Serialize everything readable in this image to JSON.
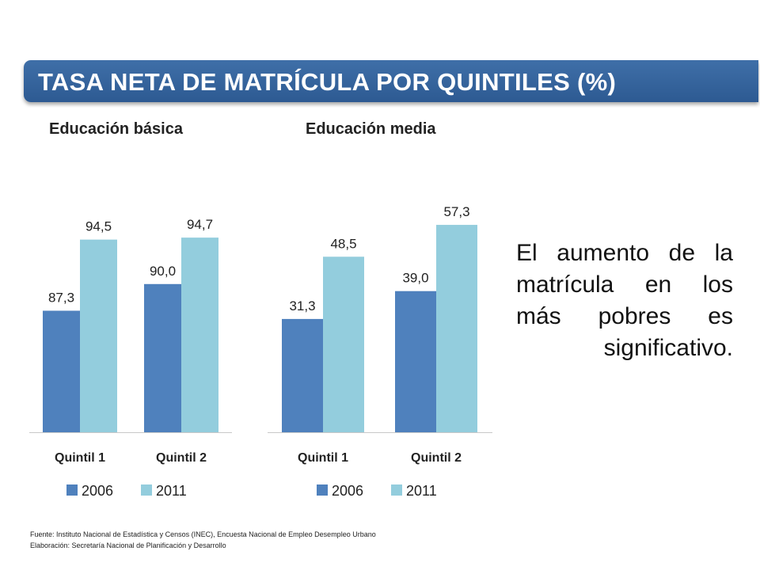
{
  "title": "TASA NETA DE MATRÍCULA POR QUINTILES (%)",
  "statement": "El aumento de la matrícula en los más pobres es significativo.",
  "footer": {
    "source": "Fuente: Instituto Nacional de Estadística y Censos  (INEC), Encuesta Nacional  de Empleo Desempleo Urbano",
    "elaboration": "Elaboración: Secretaría Nacional de Planificación y Desarrollo"
  },
  "colors": {
    "title_bar": "#335e96",
    "series_2006": "#4f81bd",
    "series_2011": "#93cddd"
  },
  "chart_data": [
    {
      "type": "bar",
      "title": "Educación básica",
      "categories": [
        "Quintil 1",
        "Quintil 2"
      ],
      "series": [
        {
          "name": "2006",
          "values": [
            87.3,
            90.0
          ],
          "labels": [
            "87,3",
            "90,0"
          ]
        },
        {
          "name": "2011",
          "values": [
            94.5,
            94.7
          ],
          "labels": [
            "94,5",
            "94,7"
          ]
        }
      ],
      "legend": "bottom",
      "grid": false
    },
    {
      "type": "bar",
      "title": "Educación media",
      "categories": [
        "Quintil 1",
        "Quintil 2"
      ],
      "series": [
        {
          "name": "2006",
          "values": [
            31.3,
            39.0
          ],
          "labels": [
            "31,3",
            "39,0"
          ]
        },
        {
          "name": "2011",
          "values": [
            48.5,
            57.3
          ],
          "labels": [
            "48,5",
            "57,3"
          ]
        }
      ],
      "legend": "bottom",
      "grid": false
    }
  ]
}
